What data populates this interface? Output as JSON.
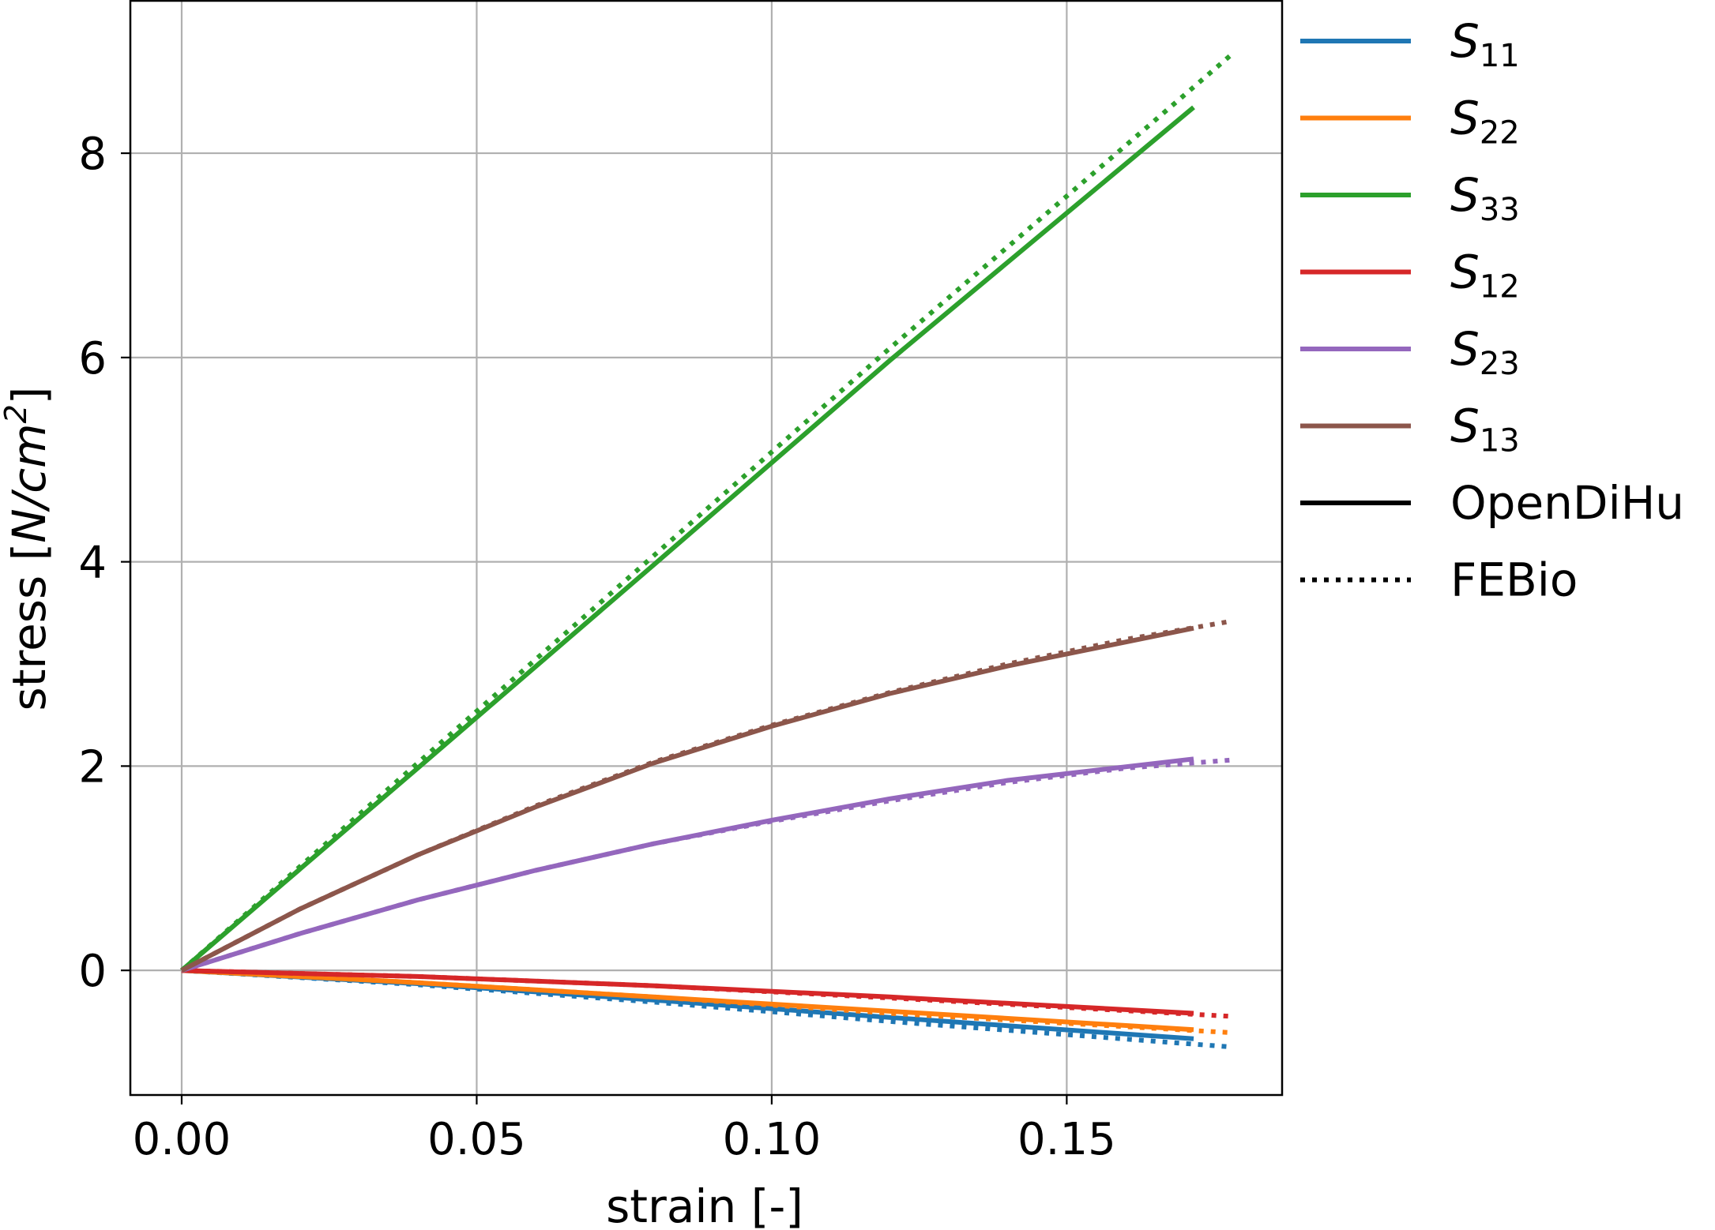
{
  "chart_data": {
    "type": "line",
    "xlabel": "strain [-]",
    "ylabel": {
      "prefix": "stress [",
      "italic": "N/cm",
      "sup": "2",
      "suffix": "]"
    },
    "xlim": [
      -0.0087,
      0.1865
    ],
    "ylim": [
      -1.22,
      9.5
    ],
    "xticks": [
      0.0,
      0.05,
      0.1,
      0.15
    ],
    "xtick_labels": [
      "0.00",
      "0.05",
      "0.10",
      "0.15"
    ],
    "yticks": [
      0,
      2,
      4,
      6,
      8
    ],
    "ytick_labels": [
      "0",
      "2",
      "4",
      "6",
      "8"
    ],
    "grid": true,
    "legend_position": "outside-right-top",
    "series": [
      {
        "name": "S",
        "sub": "11",
        "color": "#1f77b4",
        "opendihu": {
          "x": [
            0,
            0.04,
            0.08,
            0.12,
            0.1715
          ],
          "y": [
            0,
            -0.13,
            -0.29,
            -0.46,
            -0.67
          ]
        },
        "febio": {
          "x": [
            0,
            0.04,
            0.08,
            0.12,
            0.178
          ],
          "y": [
            0,
            -0.14,
            -0.31,
            -0.5,
            -0.75
          ]
        }
      },
      {
        "name": "S",
        "sub": "22",
        "color": "#ff7f0e",
        "opendihu": {
          "x": [
            0,
            0.04,
            0.08,
            0.12,
            0.1715
          ],
          "y": [
            0,
            -0.12,
            -0.26,
            -0.4,
            -0.58
          ]
        },
        "febio": {
          "x": [
            0,
            0.04,
            0.08,
            0.12,
            0.178
          ],
          "y": [
            0,
            -0.12,
            -0.26,
            -0.42,
            -0.61
          ]
        }
      },
      {
        "name": "S",
        "sub": "33",
        "color": "#2ca02c",
        "opendihu": {
          "x": [
            0,
            0.04,
            0.08,
            0.12,
            0.1715
          ],
          "y": [
            0,
            1.98,
            3.97,
            5.97,
            8.45
          ]
        },
        "febio": {
          "x": [
            0,
            0.04,
            0.08,
            0.12,
            0.178
          ],
          "y": [
            0,
            2.03,
            4.06,
            6.09,
            8.97
          ]
        }
      },
      {
        "name": "S",
        "sub": "12",
        "color": "#d62728",
        "opendihu": {
          "x": [
            0,
            0.04,
            0.08,
            0.12,
            0.1715
          ],
          "y": [
            0,
            -0.06,
            -0.15,
            -0.26,
            -0.42
          ]
        },
        "febio": {
          "x": [
            0,
            0.04,
            0.08,
            0.12,
            0.178
          ],
          "y": [
            0,
            -0.06,
            -0.15,
            -0.27,
            -0.45
          ]
        }
      },
      {
        "name": "S",
        "sub": "23",
        "color": "#9467bd",
        "opendihu": {
          "x": [
            0,
            0.02,
            0.04,
            0.06,
            0.08,
            0.1,
            0.12,
            0.14,
            0.1715
          ],
          "y": [
            0,
            0.36,
            0.69,
            0.98,
            1.24,
            1.47,
            1.68,
            1.86,
            2.07
          ]
        },
        "febio": {
          "x": [
            0,
            0.02,
            0.04,
            0.06,
            0.08,
            0.1,
            0.12,
            0.14,
            0.16,
            0.178
          ],
          "y": [
            0,
            0.36,
            0.69,
            0.98,
            1.24,
            1.46,
            1.66,
            1.84,
            1.98,
            2.06
          ]
        }
      },
      {
        "name": "S",
        "sub": "13",
        "color": "#8c564b",
        "opendihu": {
          "x": [
            0,
            0.02,
            0.04,
            0.06,
            0.08,
            0.1,
            0.12,
            0.14,
            0.1715
          ],
          "y": [
            0,
            0.6,
            1.13,
            1.6,
            2.03,
            2.39,
            2.71,
            2.98,
            3.35
          ]
        },
        "febio": {
          "x": [
            0,
            0.02,
            0.04,
            0.06,
            0.08,
            0.1,
            0.12,
            0.14,
            0.16,
            0.178
          ],
          "y": [
            0,
            0.6,
            1.13,
            1.61,
            2.04,
            2.4,
            2.72,
            3.0,
            3.24,
            3.42
          ]
        }
      }
    ],
    "legend_styles": [
      {
        "label": "OpenDiHu",
        "style": "solid"
      },
      {
        "label": "FEBio",
        "style": "dotted"
      }
    ]
  }
}
